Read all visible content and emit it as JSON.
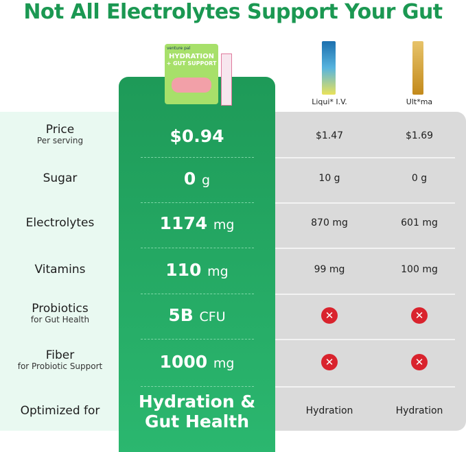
{
  "title": "Not All Electrolytes Support Your Gut",
  "product": {
    "brand": "venture pal",
    "line1": "HYDRATION",
    "line2": "+ GUT SUPPORT"
  },
  "competitors": [
    "Liqui* I.V.",
    "Ult*ma"
  ],
  "rows": [
    {
      "label": "Price",
      "sublabel": "Per serving",
      "ours": {
        "value": "$0.94"
      },
      "others": [
        "$1.47",
        "$1.69"
      ]
    },
    {
      "label": "Sugar",
      "ours": {
        "value": "0",
        "unit": "g"
      },
      "others": [
        "10 g",
        "0 g"
      ]
    },
    {
      "label": "Electrolytes",
      "ours": {
        "value": "1174",
        "unit": "mg"
      },
      "others": [
        "870 mg",
        "601 mg"
      ]
    },
    {
      "label": "Vitamins",
      "ours": {
        "value": "110",
        "unit": "mg"
      },
      "others": [
        "99 mg",
        "100 mg"
      ]
    },
    {
      "label": "Probiotics",
      "sublabel": "for Gut Health",
      "ours": {
        "value": "5B",
        "unit": "CFU"
      },
      "others": [
        null,
        null
      ]
    },
    {
      "label": "Fiber",
      "sublabel": "for Probiotic Support",
      "ours": {
        "value": "1000",
        "unit": "mg"
      },
      "others": [
        null,
        null
      ]
    },
    {
      "label": "Optimized for",
      "ours": {
        "value": "Hydration &",
        "value2": "Gut Health"
      },
      "others": [
        "Hydration",
        "Hydration"
      ]
    }
  ]
}
